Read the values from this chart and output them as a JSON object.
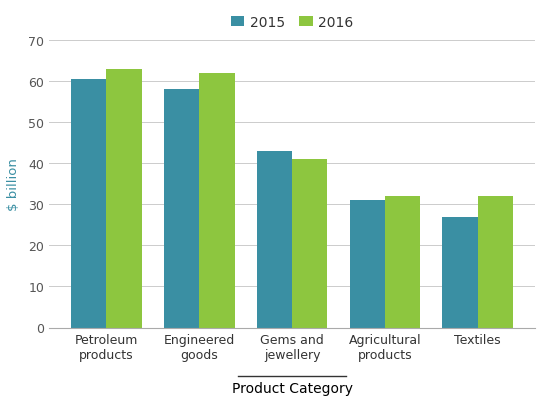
{
  "categories": [
    "Petroleum\nproducts",
    "Engineered\ngoods",
    "Gems and\njewellery",
    "Agricultural\nproducts",
    "Textiles"
  ],
  "values_2015": [
    60.5,
    58,
    43,
    31,
    27
  ],
  "values_2016": [
    63,
    62,
    41,
    32,
    32
  ],
  "color_2015": "#3a8fa3",
  "color_2016": "#8dc63f",
  "ylabel": "$ billion",
  "xlabel": "Product Category",
  "legend_labels": [
    "2015",
    "2016"
  ],
  "ylim": [
    0,
    70
  ],
  "yticks": [
    0,
    10,
    20,
    30,
    40,
    50,
    60,
    70
  ],
  "bar_width": 0.38,
  "figsize": [
    5.42,
    4.1
  ],
  "dpi": 100,
  "ylabel_color": "#3a8fa3",
  "xlabel_color": "#000000",
  "tick_label_color": "#333333",
  "grid_color": "#cccccc",
  "spine_color": "#aaaaaa"
}
